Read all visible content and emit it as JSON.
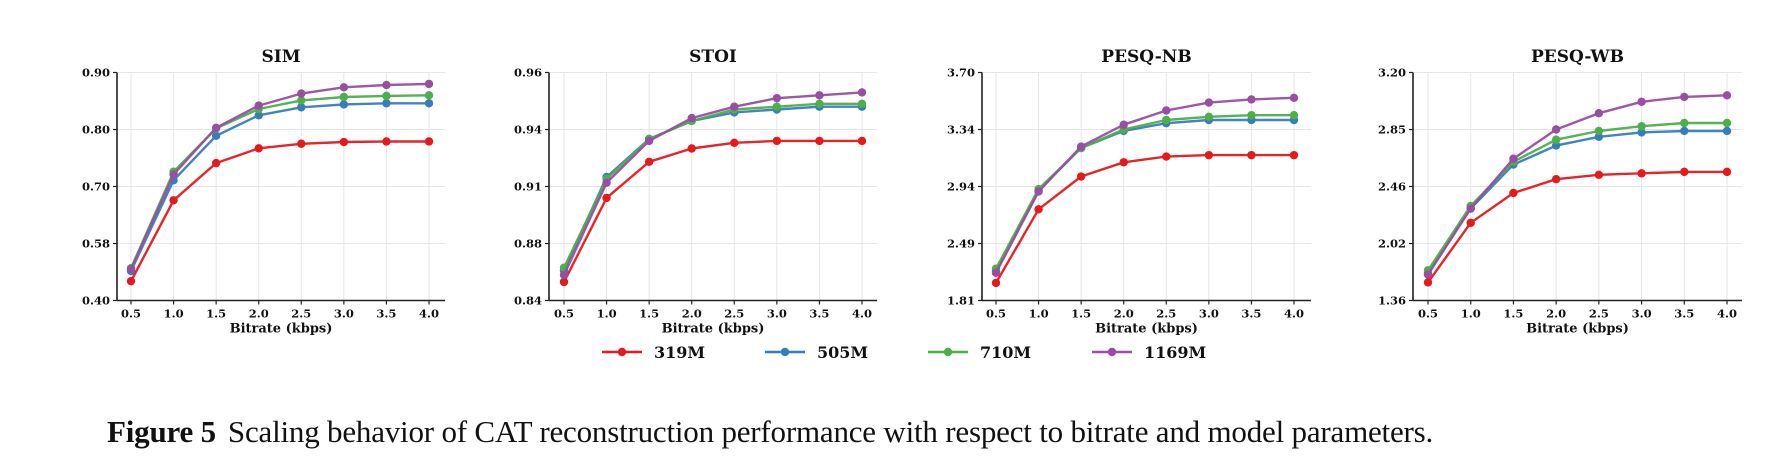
{
  "caption": {
    "label": "Figure 5",
    "text": "Scaling behavior of CAT reconstruction performance with respect to bitrate and model parameters."
  },
  "legend": {
    "placement": "bottom-center",
    "entries": [
      {
        "name": "319M",
        "color": "#e41a1c"
      },
      {
        "name": "505M",
        "color": "#377eb8"
      },
      {
        "name": "710M",
        "color": "#4daf4a"
      },
      {
        "name": "1169M",
        "color": "#984ea3"
      }
    ]
  },
  "chart_data": [
    {
      "type": "line",
      "title": "SIM",
      "xlabel": "Bitrate (kbps)",
      "ylabel": "",
      "grid": true,
      "x": [
        0.5,
        1.0,
        1.5,
        2.0,
        2.5,
        3.0,
        3.5,
        4.0
      ],
      "x_tick_labels": [
        "0.5",
        "1.0",
        "1.5",
        "2.0",
        "2.5",
        "3.0",
        "3.5",
        "4.0"
      ],
      "y_tick_labels": [
        "0.40",
        "0.58",
        "0.70",
        "0.80",
        "0.90"
      ],
      "ylim": [
        0.4,
        0.9
      ],
      "series": [
        {
          "name": "319M",
          "values": [
            0.461,
            0.671,
            0.741,
            0.767,
            0.775,
            0.778,
            0.779,
            0.779
          ]
        },
        {
          "name": "505M",
          "values": [
            0.493,
            0.711,
            0.789,
            0.825,
            0.839,
            0.844,
            0.846,
            0.846
          ]
        },
        {
          "name": "710M",
          "values": [
            0.502,
            0.726,
            0.802,
            0.836,
            0.851,
            0.857,
            0.859,
            0.86
          ]
        },
        {
          "name": "1169M",
          "values": [
            0.499,
            0.721,
            0.803,
            0.842,
            0.863,
            0.874,
            0.878,
            0.88
          ]
        }
      ]
    },
    {
      "type": "line",
      "title": "STOI",
      "xlabel": "Bitrate (kbps)",
      "ylabel": "",
      "grid": true,
      "x": [
        0.5,
        1.0,
        1.5,
        2.0,
        2.5,
        3.0,
        3.5,
        4.0
      ],
      "x_tick_labels": [
        "0.5",
        "1.0",
        "1.5",
        "2.0",
        "2.5",
        "3.0",
        "3.5",
        "4.0"
      ],
      "y_tick_labels": [
        "0.84",
        "0.88",
        "0.91",
        "0.94",
        "0.96"
      ],
      "ylim": [
        0.84,
        0.96
      ],
      "series": [
        {
          "name": "319M",
          "values": [
            0.853,
            0.904,
            0.923,
            0.93,
            0.933,
            0.934,
            0.934,
            0.934
          ]
        },
        {
          "name": "505M",
          "values": [
            0.861,
            0.915,
            0.935,
            0.943,
            0.946,
            0.947,
            0.948,
            0.948
          ]
        },
        {
          "name": "710M",
          "values": [
            0.863,
            0.914,
            0.935,
            0.943,
            0.947,
            0.948,
            0.949,
            0.949
          ]
        },
        {
          "name": "1169M",
          "values": [
            0.858,
            0.912,
            0.934,
            0.944,
            0.948,
            0.951,
            0.952,
            0.953
          ]
        }
      ]
    },
    {
      "type": "line",
      "title": "PESQ-NB",
      "xlabel": "Bitrate (kbps)",
      "ylabel": "",
      "grid": true,
      "x": [
        0.5,
        1.0,
        1.5,
        2.0,
        2.5,
        3.0,
        3.5,
        4.0
      ],
      "x_tick_labels": [
        "0.5",
        "1.0",
        "1.5",
        "2.0",
        "2.5",
        "3.0",
        "3.5",
        "4.0"
      ],
      "y_tick_labels": [
        "1.81",
        "2.49",
        "2.94",
        "3.34",
        "3.70"
      ],
      "ylim": [
        1.81,
        3.7
      ],
      "series": [
        {
          "name": "319M",
          "values": [
            2.02,
            2.76,
            3.01,
            3.11,
            3.15,
            3.16,
            3.16,
            3.16
          ]
        },
        {
          "name": "505M",
          "values": [
            2.16,
            2.91,
            3.21,
            3.33,
            3.38,
            3.4,
            3.4,
            3.4
          ]
        },
        {
          "name": "710M",
          "values": [
            2.19,
            2.92,
            3.21,
            3.34,
            3.4,
            3.42,
            3.43,
            3.43
          ]
        },
        {
          "name": "1169M",
          "values": [
            2.14,
            2.9,
            3.22,
            3.37,
            3.46,
            3.51,
            3.53,
            3.54
          ]
        }
      ]
    },
    {
      "type": "line",
      "title": "PESQ-WB",
      "xlabel": "Bitrate (kbps)",
      "ylabel": "",
      "grid": true,
      "x": [
        0.5,
        1.0,
        1.5,
        2.0,
        2.5,
        3.0,
        3.5,
        4.0
      ],
      "x_tick_labels": [
        "0.5",
        "1.0",
        "1.5",
        "2.0",
        "2.5",
        "3.0",
        "3.5",
        "4.0"
      ],
      "y_tick_labels": [
        "1.36",
        "2.02",
        "2.46",
        "2.85",
        "3.20"
      ],
      "ylim": [
        1.36,
        3.2
      ],
      "series": [
        {
          "name": "319M",
          "values": [
            1.57,
            2.18,
            2.41,
            2.51,
            2.54,
            2.55,
            2.56,
            2.56
          ]
        },
        {
          "name": "505M",
          "values": [
            1.68,
            2.29,
            2.61,
            2.74,
            2.8,
            2.83,
            2.84,
            2.84
          ]
        },
        {
          "name": "710M",
          "values": [
            1.71,
            2.31,
            2.63,
            2.78,
            2.84,
            2.87,
            2.89,
            2.89
          ]
        },
        {
          "name": "1169M",
          "values": [
            1.66,
            2.29,
            2.65,
            2.85,
            2.95,
            3.02,
            3.05,
            3.06
          ]
        }
      ]
    }
  ]
}
